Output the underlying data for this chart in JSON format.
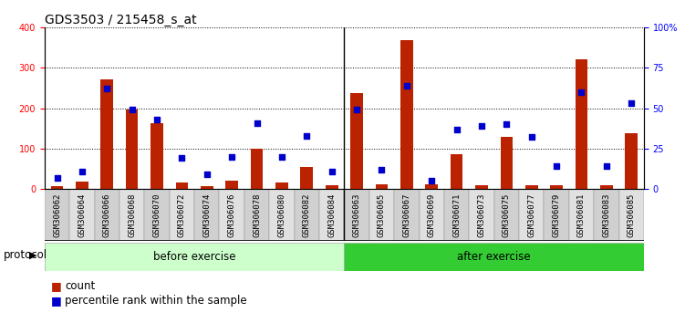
{
  "title": "GDS3503 / 215458_s_at",
  "categories": [
    "GSM306062",
    "GSM306064",
    "GSM306066",
    "GSM306068",
    "GSM306070",
    "GSM306072",
    "GSM306074",
    "GSM306076",
    "GSM306078",
    "GSM306080",
    "GSM306082",
    "GSM306084",
    "GSM306063",
    "GSM306065",
    "GSM306067",
    "GSM306069",
    "GSM306071",
    "GSM306073",
    "GSM306075",
    "GSM306077",
    "GSM306079",
    "GSM306081",
    "GSM306083",
    "GSM306085"
  ],
  "counts": [
    8,
    18,
    272,
    197,
    162,
    17,
    8,
    20,
    100,
    15,
    55,
    10,
    238,
    12,
    368,
    12,
    85,
    10,
    130,
    10,
    10,
    320,
    10,
    138
  ],
  "percentile_ranks": [
    7,
    11,
    62,
    49,
    43,
    19,
    9,
    20,
    41,
    20,
    33,
    11,
    49,
    12,
    64,
    5,
    37,
    39,
    40,
    32,
    14,
    60,
    14,
    53
  ],
  "group_before_count": 12,
  "group_after_count": 12,
  "before_label": "before exercise",
  "after_label": "after exercise",
  "protocol_label": "protocol",
  "bar_color": "#bb2200",
  "dot_color": "#0000cc",
  "ylim_left": [
    0,
    400
  ],
  "ylim_right": [
    0,
    100
  ],
  "yticks_left": [
    0,
    100,
    200,
    300,
    400
  ],
  "yticks_right": [
    0,
    25,
    50,
    75,
    100
  ],
  "yticklabels_right": [
    "0",
    "25",
    "50",
    "75",
    "100%"
  ],
  "legend_count_label": "count",
  "legend_pct_label": "percentile rank within the sample",
  "bg_color": "#ffffff",
  "plot_bg_color": "#ffffff",
  "before_bg": "#ccffcc",
  "after_bg": "#33cc33",
  "bar_width": 0.5,
  "grid_color": "#000000",
  "title_fontsize": 10,
  "tick_fontsize": 7,
  "xtick_bg_even": "#d0d0d0",
  "xtick_bg_odd": "#e0e0e0",
  "left_axis_color": "red",
  "right_axis_color": "blue"
}
